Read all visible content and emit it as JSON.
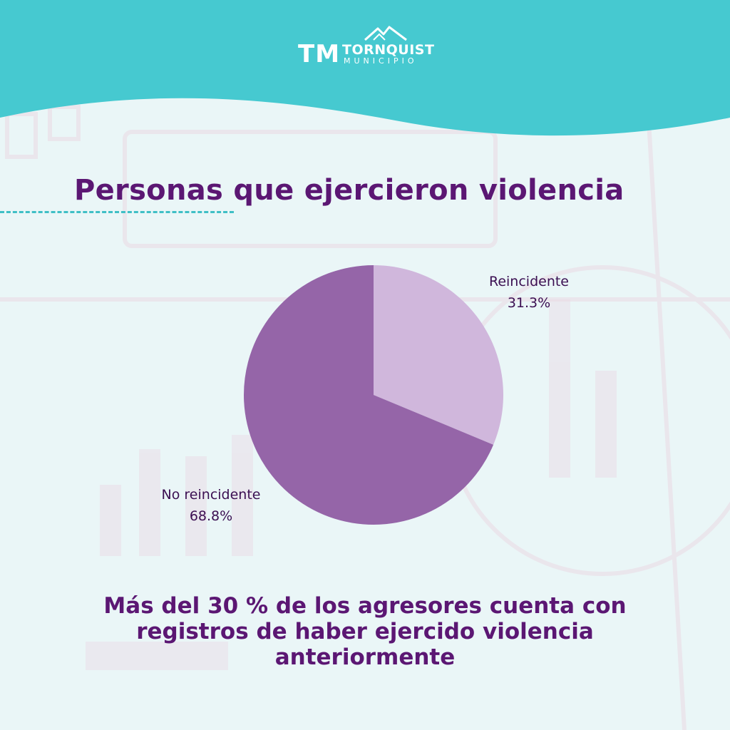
{
  "brand": {
    "mark": "TM",
    "name": "TORNQUIST",
    "subtitle": "MUNICIPIO"
  },
  "title": "Personas que ejercieron violencia",
  "chart_data": {
    "type": "pie",
    "title": "",
    "slices": [
      {
        "label": "Reincidente",
        "value": 31.3,
        "value_label": "31.3%",
        "color": "#d0b7dc"
      },
      {
        "label": "No reincidente",
        "value": 68.8,
        "value_label": "68.8%",
        "color": "#9565a8"
      }
    ]
  },
  "footer": {
    "line1": "Más del 30 % de los agresores cuenta con",
    "line2": "registros de haber ejercido violencia",
    "line3": "anteriormente"
  },
  "colors": {
    "header": "#46c9d0",
    "background": "#eaf6f7",
    "title": "#5b1773",
    "accent_line": "#3fbfc6"
  }
}
